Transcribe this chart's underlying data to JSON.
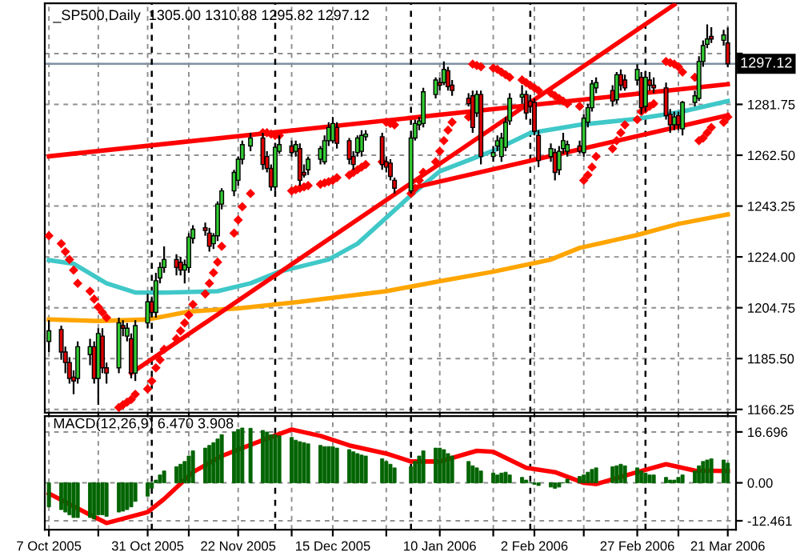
{
  "chart_data": [
    {
      "type": "candlestick",
      "title": "_SP500,Daily  1305.00 1310.88 1295.82 1297.12",
      "x": [
        "2005-10-07",
        "2005-10-10",
        "2005-10-11",
        "2005-10-12",
        "2005-10-13",
        "2005-10-14",
        "2005-10-17",
        "2005-10-18",
        "2005-10-19",
        "2005-10-20",
        "2005-10-21",
        "2005-10-24",
        "2005-10-25",
        "2005-10-26",
        "2005-10-27",
        "2005-10-28",
        "2005-10-31",
        "2005-11-01",
        "2005-11-02",
        "2005-11-03",
        "2005-11-04",
        "2005-11-07",
        "2005-11-08",
        "2005-11-09",
        "2005-11-10",
        "2005-11-11",
        "2005-11-14",
        "2005-11-15",
        "2005-11-16",
        "2005-11-17",
        "2005-11-18",
        "2005-11-21",
        "2005-11-22",
        "2005-11-23",
        "2005-11-25",
        "2005-11-28",
        "2005-11-29",
        "2005-11-30",
        "2005-12-01",
        "2005-12-02",
        "2005-12-05",
        "2005-12-06",
        "2005-12-07",
        "2005-12-08",
        "2005-12-09",
        "2005-12-12",
        "2005-12-13",
        "2005-12-14",
        "2005-12-15",
        "2005-12-16",
        "2005-12-19",
        "2005-12-20",
        "2005-12-21",
        "2005-12-22",
        "2005-12-23",
        "2005-12-27",
        "2005-12-28",
        "2005-12-29",
        "2005-12-30",
        "2006-01-03",
        "2006-01-04",
        "2006-01-05",
        "2006-01-06",
        "2006-01-09",
        "2006-01-10",
        "2006-01-11",
        "2006-01-12",
        "2006-01-13",
        "2006-01-17",
        "2006-01-18",
        "2006-01-19",
        "2006-01-20",
        "2006-01-23",
        "2006-01-24",
        "2006-01-25",
        "2006-01-26",
        "2006-01-27",
        "2006-01-30",
        "2006-01-31",
        "2006-02-01",
        "2006-02-02",
        "2006-02-03",
        "2006-02-06",
        "2006-02-07",
        "2006-02-08",
        "2006-02-09",
        "2006-02-10",
        "2006-02-13",
        "2006-02-14",
        "2006-02-15",
        "2006-02-16",
        "2006-02-17",
        "2006-02-21",
        "2006-02-22",
        "2006-02-23",
        "2006-02-24",
        "2006-02-27",
        "2006-02-28",
        "2006-03-01",
        "2006-03-02",
        "2006-03-03",
        "2006-03-06",
        "2006-03-07",
        "2006-03-08",
        "2006-03-09",
        "2006-03-10",
        "2006-03-13",
        "2006-03-14",
        "2006-03-15",
        "2006-03-16",
        "2006-03-17",
        "2006-03-20",
        "2006-03-21"
      ],
      "ohlc": [
        [
          1192,
          1200,
          1188,
          1196
        ],
        [
          1196.5,
          1198,
          1185,
          1188
        ],
        [
          1188,
          1190,
          1180,
          1184
        ],
        [
          1184,
          1186,
          1176,
          1178
        ],
        [
          1178.5,
          1181,
          1172,
          1177
        ],
        [
          1178,
          1192,
          1176,
          1190
        ],
        [
          1187,
          1193,
          1183,
          1190
        ],
        [
          1190,
          1192,
          1176,
          1178
        ],
        [
          1178,
          1197,
          1168,
          1195
        ],
        [
          1194,
          1197,
          1180,
          1182
        ],
        [
          1182,
          1184,
          1176,
          1180
        ],
        [
          1182,
          1201,
          1180,
          1199
        ],
        [
          1198,
          1200,
          1194,
          1197
        ],
        [
          1194,
          1199,
          1192,
          1197
        ],
        [
          1193,
          1195,
          1178,
          1180
        ],
        [
          1180,
          1200,
          1177,
          1198
        ],
        [
          1199,
          1210,
          1197,
          1207
        ],
        [
          1207,
          1209,
          1201,
          1203
        ],
        [
          1203,
          1218,
          1201,
          1215
        ],
        [
          1216,
          1222,
          1214,
          1220
        ],
        [
          1220,
          1228,
          1218,
          1223
        ],
        [
          1223,
          1225,
          1217,
          1220
        ],
        [
          1222,
          1224,
          1217,
          1219
        ],
        [
          1219,
          1223,
          1214,
          1221
        ],
        [
          1220,
          1233,
          1218,
          1231.5
        ],
        [
          1231,
          1236,
          1229,
          1234.5
        ],
        [
          1235,
          1237,
          1232,
          1234
        ],
        [
          1233,
          1235,
          1226,
          1228
        ],
        [
          1229,
          1233,
          1227,
          1232
        ],
        [
          1232,
          1245,
          1230,
          1244
        ],
        [
          1244,
          1250,
          1242,
          1249
        ],
        [
          1249,
          1257,
          1247,
          1256
        ],
        [
          1253,
          1262,
          1251,
          1261
        ],
        [
          1261,
          1268,
          1259,
          1266.5
        ],
        [
          1266,
          1271,
          1264,
          1269
        ],
        [
          1269,
          1271,
          1257,
          1259
        ],
        [
          1262,
          1264,
          1256,
          1257.5
        ],
        [
          1257.5,
          1259,
          1249,
          1250.5
        ],
        [
          1250.5,
          1267,
          1249,
          1265.5
        ],
        [
          1264,
          1270,
          1263,
          1266.5
        ],
        [
          1266,
          1268,
          1262,
          1263.5
        ],
        [
          1264,
          1268,
          1262,
          1266.5
        ],
        [
          1265,
          1267,
          1251,
          1253
        ],
        [
          1256,
          1259,
          1254,
          1255
        ],
        [
          1257,
          1262,
          1255,
          1261
        ],
        [
          1261,
          1266,
          1259,
          1265
        ],
        [
          1260,
          1270,
          1259,
          1268
        ],
        [
          1268,
          1275,
          1266,
          1273
        ],
        [
          1268,
          1277,
          1267,
          1274.5
        ],
        [
          1273,
          1275,
          1265,
          1267
        ],
        [
          1268,
          1269,
          1259,
          1261
        ],
        [
          1262,
          1264,
          1257,
          1259
        ],
        [
          1263.5,
          1270,
          1262,
          1269
        ],
        [
          1264,
          1272,
          1262,
          1270
        ],
        [
          1269.5,
          1272,
          1268,
          1270.5
        ],
        [
          1269.5,
          1271,
          1257,
          1259
        ],
        [
          1260,
          1262,
          1256,
          1258
        ],
        [
          1259.5,
          1261,
          1253,
          1254.5
        ],
        [
          1253,
          1254,
          1248,
          1250
        ],
        [
          1249,
          1270,
          1248,
          1269
        ],
        [
          1269,
          1276,
          1268,
          1274.5
        ],
        [
          1274,
          1277,
          1272,
          1275.5
        ],
        [
          1274.5,
          1288,
          1273,
          1286.5
        ],
        [
          1285.5,
          1292,
          1284,
          1291
        ],
        [
          1290,
          1292,
          1287,
          1289
        ],
        [
          1290,
          1298,
          1289,
          1295
        ],
        [
          1294.5,
          1296,
          1287,
          1288.5
        ],
        [
          1289,
          1291,
          1285,
          1287
        ],
        [
          1284,
          1286,
          1281,
          1282
        ],
        [
          1285,
          1287,
          1271,
          1273
        ],
        [
          1278.5,
          1287,
          1277,
          1285.5
        ],
        [
          1285.5,
          1287,
          1259,
          1262
        ],
        [
          1262,
          1266,
          1260,
          1263.5
        ],
        [
          1266,
          1270,
          1264,
          1268
        ],
        [
          1262,
          1271,
          1260,
          1269
        ],
        [
          1265.5,
          1277,
          1264,
          1275
        ],
        [
          1275.5,
          1286,
          1274,
          1284
        ],
        [
          1284.5,
          1289,
          1282,
          1285.5
        ],
        [
          1285.5,
          1287,
          1276,
          1278.5
        ],
        [
          1283,
          1285,
          1279,
          1281
        ],
        [
          1282.5,
          1284,
          1270,
          1271.5
        ],
        [
          1270,
          1272,
          1258,
          1260.5
        ],
        [
          1262,
          1267,
          1260,
          1265
        ],
        [
          1263.5,
          1265,
          1253,
          1256
        ],
        [
          1257,
          1266,
          1255,
          1264
        ],
        [
          1265,
          1271,
          1263,
          1268
        ],
        [
          1264,
          1268,
          1262,
          1266.5
        ],
        [
          1266,
          1268,
          1263,
          1264
        ],
        [
          1263.5,
          1278,
          1262,
          1276.5
        ],
        [
          1275,
          1282,
          1273,
          1280.5
        ],
        [
          1280.5,
          1291,
          1279,
          1289.5
        ],
        [
          1288,
          1292,
          1286,
          1290
        ],
        [
          1287,
          1289,
          1281,
          1283
        ],
        [
          1283.5,
          1294,
          1282,
          1293
        ],
        [
          1293,
          1295,
          1287,
          1289
        ],
        [
          1291,
          1293,
          1287,
          1288
        ],
        [
          1291,
          1297,
          1289,
          1295
        ],
        [
          1292,
          1294,
          1278,
          1280.5
        ],
        [
          1281,
          1294,
          1279,
          1292
        ],
        [
          1291,
          1294,
          1287,
          1289
        ],
        [
          1289,
          1292,
          1286,
          1288
        ],
        [
          1288,
          1290,
          1276,
          1277.5
        ],
        [
          1278,
          1280,
          1271,
          1274
        ],
        [
          1274,
          1279,
          1272,
          1277
        ],
        [
          1277.5,
          1279,
          1272,
          1274
        ],
        [
          1272.5,
          1283,
          1270,
          1282.5
        ],
        [
          1282.5,
          1287,
          1281,
          1285
        ],
        [
          1284,
          1300,
          1283,
          1298
        ],
        [
          1298,
          1306,
          1296,
          1304
        ],
        [
          1304.5,
          1312,
          1303,
          1306.5
        ],
        [
          1307.5,
          1311,
          1305,
          1306.5
        ],
        [
          1306,
          1310,
          1304,
          1308
        ],
        [
          1305,
          1310.88,
          1295.82,
          1297.12
        ]
      ],
      "colors": [
        "#33cc33",
        "#dd0000",
        "#dd0000",
        "#dd0000",
        "#dd0000",
        "#33cc33",
        "#33cc33",
        "#dd0000",
        "#33cc33",
        "#dd0000",
        "#dd0000",
        "#33cc33",
        "#dd0000",
        "#33cc33",
        "#dd0000",
        "#33cc33",
        "#33cc33",
        "#dd0000",
        "#33cc33",
        "#33cc33",
        "#33cc33",
        "#dd0000",
        "#dd0000",
        "#33cc33",
        "#33cc33",
        "#33cc33",
        "#dd0000",
        "#dd0000",
        "#33cc33",
        "#33cc33",
        "#33cc33",
        "#33cc33",
        "#33cc33",
        "#33cc33",
        "#33cc33",
        "#dd0000",
        "#dd0000",
        "#dd0000",
        "#33cc33",
        "#33cc33",
        "#dd0000",
        "#33cc33",
        "#dd0000",
        "#dd0000",
        "#33cc33",
        "#33cc33",
        "#33cc33",
        "#33cc33",
        "#33cc33",
        "#dd0000",
        "#dd0000",
        "#dd0000",
        "#33cc33",
        "#33cc33",
        "#33cc33",
        "#dd0000",
        "#dd0000",
        "#dd0000",
        "#dd0000",
        "#33cc33",
        "#33cc33",
        "#33cc33",
        "#33cc33",
        "#33cc33",
        "#dd0000",
        "#33cc33",
        "#dd0000",
        "#dd0000",
        "#dd0000",
        "#dd0000",
        "#33cc33",
        "#dd0000",
        "#33cc33",
        "#33cc33",
        "#33cc33",
        "#33cc33",
        "#33cc33",
        "#33cc33",
        "#dd0000",
        "#dd0000",
        "#dd0000",
        "#dd0000",
        "#33cc33",
        "#dd0000",
        "#33cc33",
        "#33cc33",
        "#33cc33",
        "#dd0000",
        "#33cc33",
        "#33cc33",
        "#33cc33",
        "#33cc33",
        "#dd0000",
        "#33cc33",
        "#dd0000",
        "#dd0000",
        "#33cc33",
        "#dd0000",
        "#33cc33",
        "#dd0000",
        "#dd0000",
        "#dd0000",
        "#dd0000",
        "#33cc33",
        "#dd0000",
        "#33cc33",
        "#33cc33",
        "#33cc33",
        "#33cc33",
        "#33cc33",
        "#dd0000",
        "#33cc33",
        "#dd0000"
      ],
      "series": [
        {
          "type": "line",
          "color": "#40c8c8",
          "x": [
            "2005-10-07",
            "2005-10-13",
            "2005-10-21",
            "2005-10-28",
            "2005-11-04",
            "2005-11-17",
            "2005-11-25",
            "2005-12-02",
            "2005-12-14",
            "2005-12-21",
            "2006-01-03",
            "2006-01-10",
            "2006-01-23",
            "2006-02-01",
            "2006-02-13",
            "2006-02-27",
            "2006-03-09",
            "2006-03-21"
          ],
          "values": [
            1222.8,
            1221.4,
            1214,
            1210.5,
            1210.5,
            1211,
            1214,
            1218.4,
            1223,
            1229,
            1247.3,
            1256.4,
            1264.2,
            1270.9,
            1274,
            1276.3,
            1278.7,
            1283
          ]
        },
        {
          "type": "line",
          "color": "#ffa500",
          "x": [
            "2005-10-07",
            "2005-10-19",
            "2005-10-31",
            "2005-11-10",
            "2005-11-22",
            "2005-12-07",
            "2005-12-28",
            "2006-01-10",
            "2006-01-23",
            "2006-02-06",
            "2006-02-13",
            "2006-02-27",
            "2006-03-09",
            "2006-03-21"
          ],
          "values": [
            1200.3,
            1199.7,
            1200.3,
            1203.3,
            1204.5,
            1207,
            1211,
            1214.8,
            1218.4,
            1223,
            1227.4,
            1232.3,
            1236.5,
            1240.1
          ]
        },
        {
          "type": "line",
          "color": "#ff0000",
          "x": [
            "2005-10-07",
            "2006-03-21"
          ],
          "values": [
            1262.1,
            1289.4
          ]
        },
        {
          "type": "line",
          "color": "#ff0000",
          "x": [
            "2005-10-27",
            "2006-03-08"
          ],
          "values": [
            1180,
            1319.5
          ]
        },
        {
          "type": "line",
          "color": "#ff0000",
          "x": [
            "2006-01-03",
            "2006-03-21"
          ],
          "values": [
            1250,
            1277.6
          ]
        },
        {
          "type": "scatter",
          "marker": "diamond",
          "color": "#ff0000",
          "x": [
            "2005-10-07",
            "2005-10-10",
            "2005-10-11",
            "2005-10-12",
            "2005-10-13",
            "2005-10-14",
            "2005-10-17",
            "2005-10-18",
            "2005-10-19",
            "2005-10-20",
            "2005-10-21",
            "2005-10-24",
            "2005-10-25",
            "2005-10-26",
            "2005-10-27",
            "2005-10-28",
            "2005-10-31",
            "2005-11-01",
            "2005-11-02",
            "2005-11-03",
            "2005-11-04",
            "2005-11-07",
            "2005-11-08",
            "2005-11-09",
            "2005-11-10",
            "2005-11-11",
            "2005-11-14",
            "2005-11-15",
            "2005-11-16",
            "2005-11-17",
            "2005-11-18",
            "2005-11-21",
            "2005-11-22",
            "2005-11-23",
            "2005-11-25",
            "2005-11-28",
            "2005-11-29",
            "2005-11-30",
            "2005-12-01",
            "2005-12-02",
            "2005-12-05",
            "2005-12-06",
            "2005-12-07",
            "2005-12-08",
            "2005-12-09",
            "2005-12-12",
            "2005-12-13",
            "2005-12-14",
            "2005-12-15",
            "2005-12-16",
            "2005-12-19",
            "2005-12-20",
            "2005-12-21",
            "2005-12-22",
            "2005-12-23",
            "2005-12-27",
            "2005-12-28",
            "2005-12-29",
            "2005-12-30",
            "2006-01-03",
            "2006-01-04",
            "2006-01-05",
            "2006-01-06",
            "2006-01-09",
            "2006-01-10",
            "2006-01-11",
            "2006-01-12",
            "2006-01-13",
            "2006-01-17",
            "2006-01-18",
            "2006-01-19",
            "2006-01-20",
            "2006-01-23",
            "2006-01-24",
            "2006-01-25",
            "2006-01-26",
            "2006-01-27",
            "2006-01-30",
            "2006-01-31",
            "2006-02-01",
            "2006-02-02",
            "2006-02-03",
            "2006-02-06",
            "2006-02-07",
            "2006-02-08",
            "2006-02-09",
            "2006-02-10",
            "2006-02-13",
            "2006-02-14",
            "2006-02-15",
            "2006-02-16",
            "2006-02-17",
            "2006-02-21",
            "2006-02-22",
            "2006-02-23",
            "2006-02-24",
            "2006-02-27",
            "2006-02-28",
            "2006-03-01",
            "2006-03-02",
            "2006-03-03",
            "2006-03-06",
            "2006-03-07",
            "2006-03-08",
            "2006-03-09",
            "2006-03-10",
            "2006-03-13",
            "2006-03-14",
            "2006-03-15",
            "2006-03-16",
            "2006-03-17",
            "2006-03-20",
            "2006-03-21"
          ],
          "values": [
            1232,
            1229,
            1226,
            1223,
            1219,
            1214,
            1211,
            1208,
            1205,
            1203,
            1201,
            1167,
            1168,
            1169,
            1170,
            1172,
            1174,
            1177,
            1182,
            1185,
            1189,
            1193,
            1196,
            1199,
            1202,
            1206,
            1210,
            1214,
            1218,
            1222,
            1228,
            1233,
            1238,
            1243,
            1248,
            1271,
            1271,
            1270.5,
            1270,
            1270,
            1249,
            1249.5,
            1250,
            1250.5,
            1251,
            1251.5,
            1252,
            1252.5,
            1253,
            1254,
            1255,
            1256,
            1257,
            1258,
            1259,
            1260,
            1275,
            1274.5,
            1274,
            1248,
            1250,
            1253,
            1256,
            1260,
            1264,
            1268,
            1272,
            1275,
            1277,
            1297,
            1296.5,
            1296,
            1295.5,
            1295,
            1294,
            1293,
            1292,
            1291,
            1290,
            1289,
            1288,
            1287,
            1286,
            1285,
            1284,
            1283,
            1282,
            1281,
            1253,
            1255,
            1258,
            1262,
            1265,
            1268,
            1271,
            1274,
            1276,
            1279,
            1280,
            1281,
            1282,
            1298,
            1297.5,
            1297,
            1296,
            1294,
            1292,
            1268,
            1269,
            1271,
            1273,
            1275,
            1277
          ]
        }
      ],
      "xlim": [
        "2005-10-06",
        "2006-03-23"
      ],
      "xticks": [
        {
          "value": "2005-10-07",
          "label": null
        },
        {
          "value": "2005-10-19",
          "label": null
        },
        {
          "value": "2005-10-31",
          "label": null
        },
        {
          "value": "2005-11-10",
          "label": null
        },
        {
          "value": "2005-11-22",
          "label": null
        },
        {
          "value": "2005-12-05",
          "label": null
        },
        {
          "value": "2005-12-15",
          "label": null
        },
        {
          "value": "2005-12-28",
          "label": null
        },
        {
          "value": "2006-01-10",
          "label": null
        },
        {
          "value": "2006-01-23",
          "label": null
        },
        {
          "value": "2006-02-02",
          "label": null
        },
        {
          "value": "2006-02-14",
          "label": null
        },
        {
          "value": "2006-02-27",
          "label": null
        },
        {
          "value": "2006-03-09",
          "label": null
        },
        {
          "value": "2006-03-21",
          "label": null
        }
      ],
      "ylim": [
        1165,
        1320
      ],
      "yticks": [
        1166.25,
        {
          "value": 1185.5,
          "label": "1185.50"
        },
        1204.75,
        {
          "value": 1224,
          "label": "1224.00"
        },
        1243.25,
        {
          "value": 1262.5,
          "label": "1262.50"
        },
        1281.75,
        {
          "value": 1301,
          "label": null
        }
      ],
      "tick_labels": "y",
      "grid": true,
      "ref_lines": [
        {
          "axis": "y",
          "value": 1297.12,
          "label": "1297.12",
          "color": "#8090a0",
          "line_style": "solid"
        },
        {
          "axis": "x",
          "value": "2005-11-01",
          "color": "#000000",
          "line_style": "dashed"
        },
        {
          "axis": "x",
          "value": "2005-12-01",
          "color": "#000000",
          "line_style": "dashed"
        },
        {
          "axis": "x",
          "value": "2006-01-03",
          "color": "#000000",
          "line_style": "dashed"
        },
        {
          "axis": "x",
          "value": "2006-02-01",
          "color": "#000000",
          "line_style": "dashed"
        },
        {
          "axis": "x",
          "value": "2006-03-01",
          "color": "#000000",
          "line_style": "dashed"
        }
      ]
    },
    {
      "type": "bar",
      "title": "MACD(12,26,9) 6.470 3.908",
      "color": "#006400",
      "x": [
        "2005-10-07",
        "2005-10-10",
        "2005-10-11",
        "2005-10-12",
        "2005-10-13",
        "2005-10-14",
        "2005-10-17",
        "2005-10-18",
        "2005-10-19",
        "2005-10-20",
        "2005-10-21",
        "2005-10-24",
        "2005-10-25",
        "2005-10-26",
        "2005-10-27",
        "2005-10-28",
        "2005-10-31",
        "2005-11-01",
        "2005-11-02",
        "2005-11-03",
        "2005-11-04",
        "2005-11-07",
        "2005-11-08",
        "2005-11-09",
        "2005-11-10",
        "2005-11-11",
        "2005-11-14",
        "2005-11-15",
        "2005-11-16",
        "2005-11-17",
        "2005-11-18",
        "2005-11-21",
        "2005-11-22",
        "2005-11-23",
        "2005-11-25",
        "2005-11-28",
        "2005-11-29",
        "2005-11-30",
        "2005-12-01",
        "2005-12-02",
        "2005-12-05",
        "2005-12-06",
        "2005-12-07",
        "2005-12-08",
        "2005-12-09",
        "2005-12-12",
        "2005-12-13",
        "2005-12-14",
        "2005-12-15",
        "2005-12-16",
        "2005-12-19",
        "2005-12-20",
        "2005-12-21",
        "2005-12-22",
        "2005-12-23",
        "2005-12-27",
        "2005-12-28",
        "2005-12-29",
        "2005-12-30",
        "2006-01-03",
        "2006-01-04",
        "2006-01-05",
        "2006-01-06",
        "2006-01-09",
        "2006-01-10",
        "2006-01-11",
        "2006-01-12",
        "2006-01-13",
        "2006-01-17",
        "2006-01-18",
        "2006-01-19",
        "2006-01-20",
        "2006-01-23",
        "2006-01-24",
        "2006-01-25",
        "2006-01-26",
        "2006-01-27",
        "2006-01-30",
        "2006-01-31",
        "2006-02-01",
        "2006-02-02",
        "2006-02-03",
        "2006-02-06",
        "2006-02-07",
        "2006-02-08",
        "2006-02-09",
        "2006-02-10",
        "2006-02-13",
        "2006-02-14",
        "2006-02-15",
        "2006-02-16",
        "2006-02-17",
        "2006-02-21",
        "2006-02-22",
        "2006-02-23",
        "2006-02-24",
        "2006-02-27",
        "2006-02-28",
        "2006-03-01",
        "2006-03-02",
        "2006-03-03",
        "2006-03-06",
        "2006-03-07",
        "2006-03-08",
        "2006-03-09",
        "2006-03-10",
        "2006-03-13",
        "2006-03-14",
        "2006-03-15",
        "2006-03-16",
        "2006-03-17",
        "2006-03-20",
        "2006-03-21"
      ],
      "values": [
        -7.9,
        -8.8,
        -9.6,
        -10.5,
        -11.4,
        -11.4,
        -11.4,
        -11.9,
        -10.5,
        -10.5,
        -11,
        -9.6,
        -9.3,
        -8.8,
        -7.9,
        -6.1,
        -4.4,
        -1.8,
        0.9,
        2.6,
        3.9,
        5.3,
        6.1,
        7,
        8.8,
        10.5,
        11.4,
        12.3,
        13.2,
        14.4,
        15.8,
        16.7,
        17.5,
        18,
        17.9,
        17.2,
        16.7,
        15.8,
        15.8,
        15.4,
        14.9,
        14,
        13.5,
        13.2,
        12.8,
        12.3,
        11.9,
        11.9,
        11.9,
        11.4,
        10.9,
        10.2,
        9.6,
        9.1,
        8.8,
        7.9,
        7,
        6.1,
        4.9,
        5.3,
        7,
        8.8,
        10.5,
        11.4,
        11.4,
        10.9,
        9.6,
        8.8,
        7,
        5.6,
        4.9,
        3.9,
        3.2,
        2.6,
        3.2,
        3.5,
        2.6,
        1.8,
        0.9,
        0,
        -0.5,
        -0.9,
        -1.4,
        -1.8,
        -1.4,
        0,
        1.2,
        2.1,
        2.6,
        3.5,
        4.4,
        4.9,
        5.3,
        5.6,
        6.1,
        5.6,
        4.9,
        3.9,
        3.2,
        2.6,
        2.6,
        1.8,
        0.9,
        0.9,
        1.8,
        2.6,
        3.9,
        5.6,
        7,
        7.5,
        7.9,
        7.5,
        6.47
      ],
      "series": [
        {
          "type": "line",
          "color": "#ff0000",
          "x": [
            "2005-10-07",
            "2005-10-17",
            "2005-10-21",
            "2005-10-31",
            "2005-11-04",
            "2005-11-11",
            "2005-11-18",
            "2005-11-28",
            "2005-12-05",
            "2005-12-12",
            "2005-12-19",
            "2005-12-28",
            "2006-01-03",
            "2006-01-10",
            "2006-01-19",
            "2006-01-23",
            "2006-01-31",
            "2006-02-07",
            "2006-02-14",
            "2006-02-17",
            "2006-02-27",
            "2006-03-06",
            "2006-03-13",
            "2006-03-21"
          ],
          "values": [
            -3.5,
            -10.5,
            -13.2,
            -9.6,
            -5.3,
            3.5,
            8.8,
            14,
            17.5,
            15.4,
            12.3,
            9.6,
            7,
            7,
            10.5,
            10.2,
            4.9,
            3.5,
            0,
            -0.4,
            3.5,
            6.1,
            4,
            3.908
          ]
        }
      ],
      "xlim": [
        "2005-10-06",
        "2006-03-23"
      ],
      "xticks": [
        {
          "value": "2005-10-07",
          "label": "7 Oct 2005"
        },
        {
          "value": "2005-10-19",
          "label": null
        },
        {
          "value": "2005-10-31",
          "label": "31 Oct 2005"
        },
        {
          "value": "2005-11-10",
          "label": null
        },
        {
          "value": "2005-11-22",
          "label": "22 Nov 2005"
        },
        {
          "value": "2005-12-05",
          "label": null
        },
        {
          "value": "2005-12-15",
          "label": "15 Dec 2005"
        },
        {
          "value": "2005-12-28",
          "label": null
        },
        {
          "value": "2006-01-10",
          "label": "10 Jan 2006"
        },
        {
          "value": "2006-01-23",
          "label": null
        },
        {
          "value": "2006-02-02",
          "label": "2 Feb 2006"
        },
        {
          "value": "2006-02-14",
          "label": null
        },
        {
          "value": "2006-02-27",
          "label": "27 Feb 2006"
        },
        {
          "value": "2006-03-09",
          "label": null
        },
        {
          "value": "2006-03-21",
          "label": "21 Mar 2006"
        }
      ],
      "ylim": [
        -15.4,
        21.9
      ],
      "yticks": [
        16.696,
        {
          "value": 0,
          "label": "0.00"
        },
        -12.461
      ],
      "grid": true,
      "ref_lines": [
        {
          "axis": "x",
          "value": "2005-11-01",
          "color": "#000000",
          "line_style": "dashed"
        },
        {
          "axis": "x",
          "value": "2005-12-01",
          "color": "#000000",
          "line_style": "dashed"
        },
        {
          "axis": "x",
          "value": "2006-01-03",
          "color": "#000000",
          "line_style": "dashed"
        },
        {
          "axis": "x",
          "value": "2006-02-01",
          "color": "#000000",
          "line_style": "dashed"
        },
        {
          "axis": "x",
          "value": "2006-03-01",
          "color": "#000000",
          "line_style": "dashed"
        }
      ]
    }
  ]
}
